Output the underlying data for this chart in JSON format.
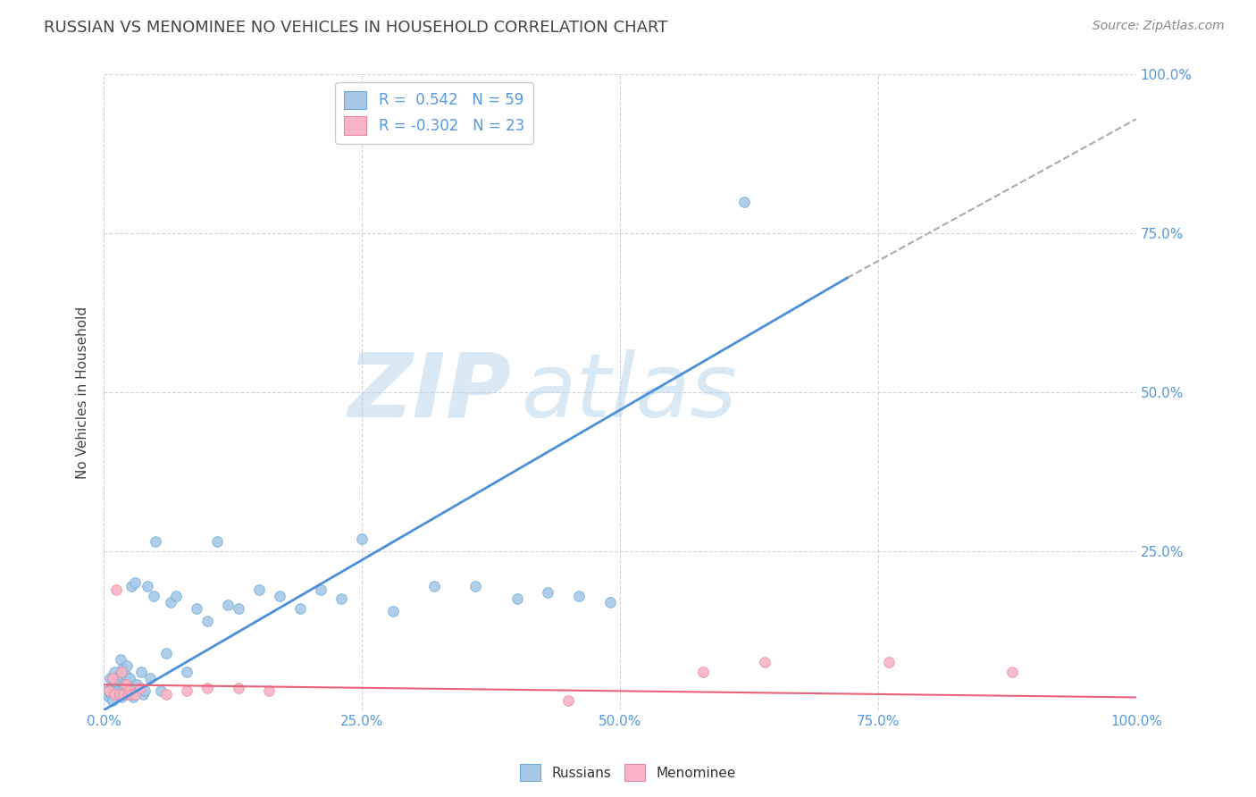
{
  "title": "RUSSIAN VS MENOMINEE NO VEHICLES IN HOUSEHOLD CORRELATION CHART",
  "source": "Source: ZipAtlas.com",
  "ylabel": "No Vehicles in Household",
  "xlim": [
    0,
    1.0
  ],
  "ylim": [
    0,
    1.0
  ],
  "xtick_labels": [
    "0.0%",
    "",
    "25.0%",
    "",
    "50.0%",
    "",
    "75.0%",
    "",
    "100.0%"
  ],
  "xtick_vals": [
    0.0,
    0.125,
    0.25,
    0.375,
    0.5,
    0.625,
    0.75,
    0.875,
    1.0
  ],
  "right_ytick_vals": [
    0.0,
    0.25,
    0.5,
    0.75,
    1.0
  ],
  "right_ytick_labels": [
    "",
    "25.0%",
    "50.0%",
    "75.0%",
    "100.0%"
  ],
  "legend_label_russian": "Russians",
  "legend_label_menominee": "Menominee",
  "russian_R": "0.542",
  "russian_N": "59",
  "menominee_R": "-0.302",
  "menominee_N": "23",
  "russian_color": "#a8c8e8",
  "russian_edge_color": "#6aaad4",
  "russian_line_color": "#4a90d9",
  "menominee_color": "#f8b4c4",
  "menominee_edge_color": "#e888a0",
  "menominee_line_color": "#e8607a",
  "background_color": "#ffffff",
  "grid_color": "#c8c8d8",
  "title_color": "#444444",
  "source_color": "#888888",
  "watermark_color": "#d8e8f4",
  "russian_x": [
    0.003,
    0.005,
    0.006,
    0.007,
    0.008,
    0.009,
    0.01,
    0.011,
    0.012,
    0.013,
    0.014,
    0.015,
    0.016,
    0.017,
    0.018,
    0.019,
    0.02,
    0.021,
    0.022,
    0.023,
    0.024,
    0.025,
    0.026,
    0.027,
    0.028,
    0.03,
    0.032,
    0.034,
    0.036,
    0.038,
    0.04,
    0.042,
    0.045,
    0.048,
    0.05,
    0.055,
    0.06,
    0.065,
    0.07,
    0.08,
    0.09,
    0.1,
    0.11,
    0.12,
    0.13,
    0.15,
    0.17,
    0.19,
    0.21,
    0.23,
    0.25,
    0.28,
    0.32,
    0.36,
    0.4,
    0.43,
    0.46,
    0.49,
    0.62
  ],
  "russian_y": [
    0.03,
    0.02,
    0.05,
    0.025,
    0.015,
    0.04,
    0.06,
    0.035,
    0.045,
    0.025,
    0.03,
    0.055,
    0.08,
    0.02,
    0.065,
    0.035,
    0.04,
    0.055,
    0.07,
    0.025,
    0.03,
    0.05,
    0.035,
    0.195,
    0.02,
    0.2,
    0.04,
    0.03,
    0.06,
    0.025,
    0.03,
    0.195,
    0.05,
    0.18,
    0.265,
    0.03,
    0.09,
    0.17,
    0.18,
    0.06,
    0.16,
    0.14,
    0.265,
    0.165,
    0.16,
    0.19,
    0.18,
    0.16,
    0.19,
    0.175,
    0.27,
    0.155,
    0.195,
    0.195,
    0.175,
    0.185,
    0.18,
    0.17,
    0.8
  ],
  "menominee_x": [
    0.005,
    0.008,
    0.01,
    0.012,
    0.015,
    0.017,
    0.019,
    0.021,
    0.023,
    0.025,
    0.027,
    0.03,
    0.035,
    0.06,
    0.08,
    0.1,
    0.13,
    0.16,
    0.45,
    0.58,
    0.64,
    0.76,
    0.88
  ],
  "menominee_y": [
    0.03,
    0.05,
    0.025,
    0.19,
    0.025,
    0.06,
    0.025,
    0.04,
    0.025,
    0.03,
    0.025,
    0.025,
    0.035,
    0.025,
    0.03,
    0.035,
    0.035,
    0.03,
    0.015,
    0.06,
    0.075,
    0.075,
    0.06
  ],
  "blue_line_x": [
    0.0,
    0.72
  ],
  "blue_line_y": [
    0.0,
    0.68
  ],
  "dash_line_x": [
    0.72,
    1.0
  ],
  "dash_line_y": [
    0.68,
    0.93
  ],
  "pink_line_x": [
    0.0,
    1.0
  ],
  "pink_line_y": [
    0.04,
    0.02
  ]
}
